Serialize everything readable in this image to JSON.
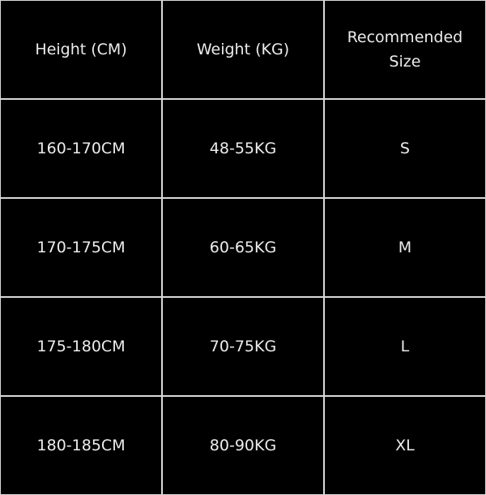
{
  "headers": [
    "Height (CM)",
    "Weight (KG)",
    "Recommended Size"
  ],
  "rows": [
    [
      "160-170CM",
      "48-55KG",
      "S"
    ],
    [
      "170-175CM",
      "60-65KG",
      "M"
    ],
    [
      "175-180CM",
      "70-75KG",
      "L"
    ],
    [
      "180-185CM",
      "80-90KG",
      "XL"
    ]
  ]
}
